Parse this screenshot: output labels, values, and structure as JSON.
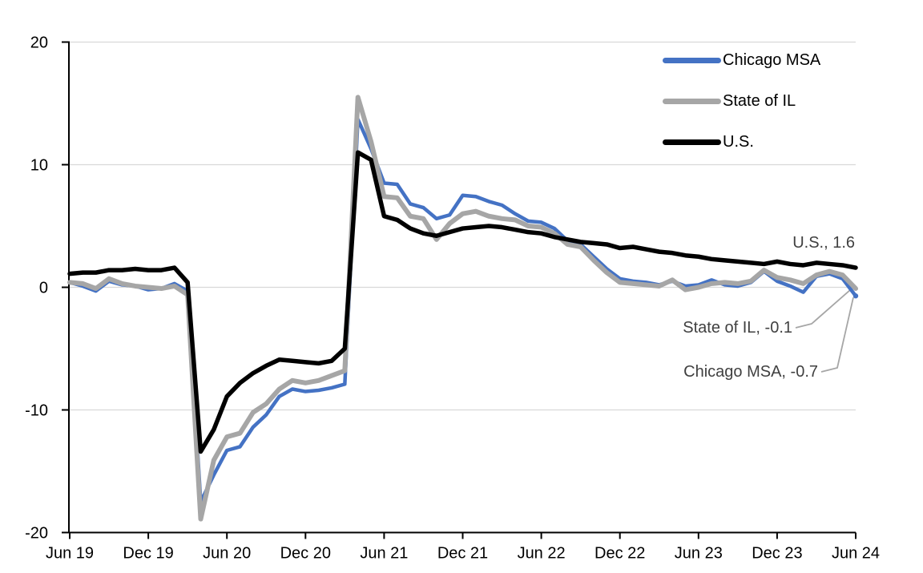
{
  "chart_data": {
    "type": "line",
    "title": "",
    "xlabel": "",
    "ylabel": "",
    "ylim": [
      -20,
      20
    ],
    "grid": "horizontal",
    "gridlines": [
      20,
      10,
      0,
      -10
    ],
    "legend_position": "top-right",
    "x_categories": [
      "Jun 2019",
      "Jul 2019",
      "Aug 2019",
      "Sep 2019",
      "Oct 2019",
      "Nov 2019",
      "Dec 2019",
      "Jan 2020",
      "Feb 2020",
      "Mar 2020",
      "Apr 2020",
      "May 2020",
      "Jun 2020",
      "Jul 2020",
      "Aug 2020",
      "Sep 2020",
      "Oct 2020",
      "Nov 2020",
      "Dec 2020",
      "Jan 2021",
      "Feb 2021",
      "Mar 2021",
      "Apr 2021",
      "May 2021",
      "Jun 2021",
      "Jul 2021",
      "Aug 2021",
      "Sep 2021",
      "Oct 2021",
      "Nov 2021",
      "Dec 2021",
      "Jan 2022",
      "Feb 2022",
      "Mar 2022",
      "Apr 2022",
      "May 2022",
      "Jun 2022",
      "Jul 2022",
      "Aug 2022",
      "Sep 2022",
      "Oct 2022",
      "Nov 2022",
      "Dec 2022",
      "Jan 2023",
      "Feb 2023",
      "Mar 2023",
      "Apr 2023",
      "May 2023",
      "Jun 2023",
      "Jul 2023",
      "Aug 2023",
      "Sep 2023",
      "Oct 2023",
      "Nov 2023",
      "Dec 2023",
      "Jan 2024",
      "Feb 2024",
      "Mar 2024",
      "Apr 2024",
      "May 2024",
      "Jun 2024"
    ],
    "x_ticks": [
      {
        "label": "Jun 19",
        "month_index": 0
      },
      {
        "label": "Dec 19",
        "month_index": 6
      },
      {
        "label": "Jun 20",
        "month_index": 12
      },
      {
        "label": "Dec 20",
        "month_index": 18
      },
      {
        "label": "Jun 21",
        "month_index": 24
      },
      {
        "label": "Dec 21",
        "month_index": 30
      },
      {
        "label": "Jun 22",
        "month_index": 36
      },
      {
        "label": "Dec 22",
        "month_index": 42
      },
      {
        "label": "Jun 23",
        "month_index": 48
      },
      {
        "label": "Dec 23",
        "month_index": 54
      },
      {
        "label": "Jun 24",
        "month_index": 60
      }
    ],
    "y_ticks": [
      {
        "label": "20",
        "value": 20
      },
      {
        "label": "10",
        "value": 10
      },
      {
        "label": "0",
        "value": 0
      },
      {
        "label": "-10",
        "value": -10
      },
      {
        "label": "-20",
        "value": -20
      }
    ],
    "series": [
      {
        "name": "Chicago MSA",
        "color": "#4472C4",
        "last_value": -0.7,
        "values": [
          0.4,
          0.1,
          -0.3,
          0.5,
          0.2,
          0.1,
          -0.2,
          -0.1,
          0.3,
          -0.3,
          -17.5,
          -15.3,
          -13.3,
          -13.0,
          -11.4,
          -10.4,
          -8.9,
          -8.3,
          -8.5,
          -8.4,
          -8.2,
          -7.9,
          13.7,
          11.3,
          8.5,
          8.4,
          6.8,
          6.5,
          5.6,
          5.9,
          7.5,
          7.4,
          7.0,
          6.7,
          6.0,
          5.4,
          5.3,
          4.8,
          3.8,
          3.5,
          2.5,
          1.5,
          0.7,
          0.5,
          0.4,
          0.2,
          0.5,
          0.1,
          0.2,
          0.6,
          0.2,
          0.1,
          0.4,
          1.3,
          0.5,
          0.1,
          -0.4,
          0.9,
          1.1,
          0.7,
          -0.7
        ]
      },
      {
        "name": "State of IL",
        "color": "#A6A6A6",
        "last_value": -0.1,
        "values": [
          0.4,
          0.3,
          -0.1,
          0.7,
          0.3,
          0.1,
          0.0,
          -0.1,
          0.1,
          -0.6,
          -18.9,
          -14.1,
          -12.2,
          -11.9,
          -10.2,
          -9.5,
          -8.3,
          -7.6,
          -7.8,
          -7.6,
          -7.2,
          -6.8,
          15.5,
          11.9,
          7.4,
          7.3,
          5.8,
          5.6,
          3.9,
          5.2,
          6.0,
          6.2,
          5.8,
          5.6,
          5.5,
          5.0,
          4.9,
          4.4,
          3.5,
          3.3,
          2.2,
          1.2,
          0.4,
          0.3,
          0.2,
          0.1,
          0.6,
          -0.2,
          0.0,
          0.3,
          0.4,
          0.3,
          0.5,
          1.4,
          0.8,
          0.6,
          0.3,
          1.0,
          1.3,
          1.0,
          -0.1
        ]
      },
      {
        "name": "U.S.",
        "color": "#000000",
        "last_value": 1.6,
        "values": [
          1.1,
          1.2,
          1.2,
          1.4,
          1.4,
          1.5,
          1.4,
          1.4,
          1.6,
          0.4,
          -13.4,
          -11.6,
          -8.9,
          -7.8,
          -7.0,
          -6.4,
          -5.9,
          -6.0,
          -6.1,
          -6.2,
          -6.0,
          -5.0,
          11.0,
          10.4,
          5.8,
          5.5,
          4.8,
          4.4,
          4.2,
          4.5,
          4.8,
          4.9,
          5.0,
          4.9,
          4.7,
          4.5,
          4.4,
          4.1,
          3.9,
          3.7,
          3.6,
          3.5,
          3.2,
          3.3,
          3.1,
          2.9,
          2.8,
          2.6,
          2.5,
          2.3,
          2.2,
          2.1,
          2.0,
          1.9,
          2.1,
          1.9,
          1.8,
          2.0,
          1.9,
          1.8,
          1.6
        ]
      }
    ],
    "annotations": [
      {
        "series": "U.S.",
        "text": "U.S., 1.6"
      },
      {
        "series": "State of IL",
        "text": "State of IL, -0.1"
      },
      {
        "series": "Chicago MSA",
        "text": "Chicago MSA, -0.7"
      }
    ]
  },
  "colors": {
    "chicago_msa": "#4472C4",
    "state_of_il": "#A6A6A6",
    "us": "#000000",
    "gridline": "#D9D9D9",
    "axis": "#000000",
    "annotation_text": "#404040",
    "leader_line": "#A6A6A6",
    "background": "#FFFFFF"
  }
}
